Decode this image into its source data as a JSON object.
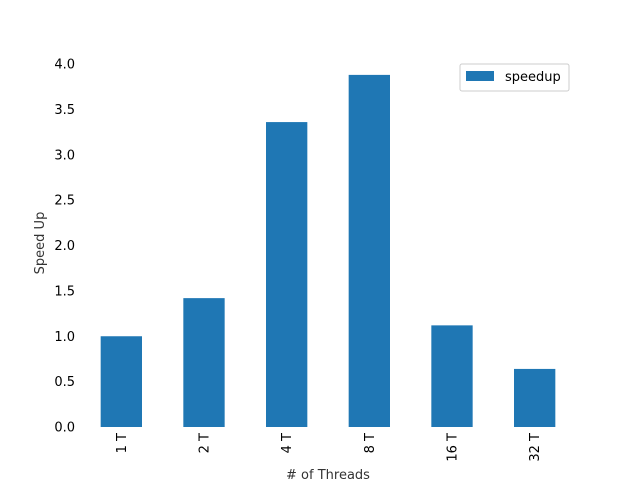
{
  "chart_data": {
    "type": "bar",
    "categories": [
      "1 T",
      "2 T",
      "4 T",
      "8 T",
      "16 T",
      "32 T"
    ],
    "series": [
      {
        "name": "speedup",
        "values": [
          1.0,
          1.42,
          3.36,
          3.88,
          1.12,
          0.64
        ]
      }
    ],
    "xlabel": "# of Threads",
    "ylabel": "Speed Up",
    "ylim": [
      0,
      4.0
    ],
    "yticks": [
      "0.0",
      "0.5",
      "1.0",
      "1.5",
      "2.0",
      "2.5",
      "3.0",
      "3.5",
      "4.0"
    ],
    "grid": false,
    "legend": {
      "placement": "top-right",
      "entries": [
        "speedup"
      ]
    },
    "colors": {
      "bar": "#1f77b4"
    },
    "xtick_rotation": "vertical"
  }
}
